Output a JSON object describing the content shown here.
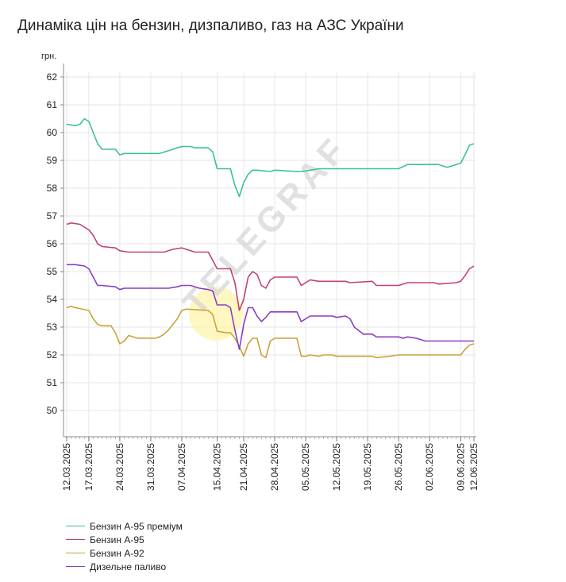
{
  "title": "Динаміка цін на бензин, дизпаливо, газ на АЗС України",
  "watermark": "TELEGRAF",
  "chart_data": {
    "type": "line",
    "title": "Динаміка цін на бензин, дизпаливо, газ на АЗС України",
    "ylabel": "грн.",
    "xlabel": "",
    "ylim": [
      49,
      62
    ],
    "yticks": [
      50,
      51,
      52,
      53,
      54,
      55,
      56,
      57,
      58,
      59,
      60,
      61,
      62
    ],
    "grid": true,
    "legend_position": "bottom-left",
    "x_tick_labels": [
      "12.03.2025",
      "17.03.2025",
      "24.03.2025",
      "31.03.2025",
      "07.04.2025",
      "15.04.2025",
      "21.04.2025",
      "28.04.2025",
      "05.05.2025",
      "12.05.2025",
      "19.05.2025",
      "26.05.2025",
      "02.06.2025",
      "09.06.2025",
      "12.06.2025"
    ],
    "x_tick_dates": [
      "2025-03-12",
      "2025-03-17",
      "2025-03-24",
      "2025-03-31",
      "2025-04-07",
      "2025-04-15",
      "2025-04-21",
      "2025-04-28",
      "2025-05-05",
      "2025-05-12",
      "2025-05-19",
      "2025-05-26",
      "2025-06-02",
      "2025-06-09",
      "2025-06-12"
    ],
    "series": [
      {
        "name": "Бензин А-95 преміум",
        "color": "#3dbf9f",
        "points": [
          [
            "2025-03-12",
            60.3
          ],
          [
            "2025-03-14",
            60.25
          ],
          [
            "2025-03-15",
            60.3
          ],
          [
            "2025-03-16",
            60.5
          ],
          [
            "2025-03-17",
            60.4
          ],
          [
            "2025-03-18",
            60.0
          ],
          [
            "2025-03-19",
            59.6
          ],
          [
            "2025-03-20",
            59.4
          ],
          [
            "2025-03-23",
            59.4
          ],
          [
            "2025-03-24",
            59.2
          ],
          [
            "2025-03-25",
            59.25
          ],
          [
            "2025-04-02",
            59.25
          ],
          [
            "2025-04-04",
            59.35
          ],
          [
            "2025-04-06",
            59.45
          ],
          [
            "2025-04-07",
            59.5
          ],
          [
            "2025-04-09",
            59.5
          ],
          [
            "2025-04-10",
            59.45
          ],
          [
            "2025-04-13",
            59.45
          ],
          [
            "2025-04-14",
            59.3
          ],
          [
            "2025-04-15",
            58.7
          ],
          [
            "2025-04-18",
            58.7
          ],
          [
            "2025-04-19",
            58.1
          ],
          [
            "2025-04-20",
            57.7
          ],
          [
            "2025-04-21",
            58.2
          ],
          [
            "2025-04-22",
            58.5
          ],
          [
            "2025-04-23",
            58.65
          ],
          [
            "2025-04-24",
            58.65
          ],
          [
            "2025-04-27",
            58.6
          ],
          [
            "2025-04-28",
            58.65
          ],
          [
            "2025-05-03",
            58.6
          ],
          [
            "2025-05-04",
            58.6
          ],
          [
            "2025-05-06",
            58.65
          ],
          [
            "2025-05-08",
            58.7
          ],
          [
            "2025-05-26",
            58.7
          ],
          [
            "2025-05-28",
            58.85
          ],
          [
            "2025-06-04",
            58.85
          ],
          [
            "2025-06-06",
            58.75
          ],
          [
            "2025-06-07",
            58.8
          ],
          [
            "2025-06-08",
            58.85
          ],
          [
            "2025-06-09",
            58.9
          ],
          [
            "2025-06-10",
            59.2
          ],
          [
            "2025-06-11",
            59.55
          ],
          [
            "2025-06-12",
            59.6
          ]
        ]
      },
      {
        "name": "Бензин А-95",
        "color": "#c2407a",
        "points": [
          [
            "2025-03-12",
            56.7
          ],
          [
            "2025-03-13",
            56.75
          ],
          [
            "2025-03-15",
            56.7
          ],
          [
            "2025-03-17",
            56.5
          ],
          [
            "2025-03-18",
            56.3
          ],
          [
            "2025-03-19",
            56.0
          ],
          [
            "2025-03-20",
            55.9
          ],
          [
            "2025-03-23",
            55.85
          ],
          [
            "2025-03-24",
            55.75
          ],
          [
            "2025-03-26",
            55.7
          ],
          [
            "2025-04-03",
            55.7
          ],
          [
            "2025-04-05",
            55.8
          ],
          [
            "2025-04-07",
            55.85
          ],
          [
            "2025-04-08",
            55.8
          ],
          [
            "2025-04-10",
            55.7
          ],
          [
            "2025-04-13",
            55.7
          ],
          [
            "2025-04-14",
            55.4
          ],
          [
            "2025-04-15",
            55.1
          ],
          [
            "2025-04-18",
            55.1
          ],
          [
            "2025-04-19",
            54.6
          ],
          [
            "2025-04-20",
            53.6
          ],
          [
            "2025-04-21",
            54.0
          ],
          [
            "2025-04-22",
            54.8
          ],
          [
            "2025-04-23",
            55.0
          ],
          [
            "2025-04-24",
            54.9
          ],
          [
            "2025-04-25",
            54.5
          ],
          [
            "2025-04-26",
            54.4
          ],
          [
            "2025-04-27",
            54.7
          ],
          [
            "2025-04-28",
            54.8
          ],
          [
            "2025-05-03",
            54.8
          ],
          [
            "2025-05-04",
            54.5
          ],
          [
            "2025-05-05",
            54.6
          ],
          [
            "2025-05-06",
            54.7
          ],
          [
            "2025-05-08",
            54.65
          ],
          [
            "2025-05-14",
            54.65
          ],
          [
            "2025-05-15",
            54.6
          ],
          [
            "2025-05-20",
            54.65
          ],
          [
            "2025-05-21",
            54.5
          ],
          [
            "2025-05-26",
            54.5
          ],
          [
            "2025-05-28",
            54.6
          ],
          [
            "2025-06-03",
            54.6
          ],
          [
            "2025-06-04",
            54.55
          ],
          [
            "2025-06-08",
            54.6
          ],
          [
            "2025-06-09",
            54.65
          ],
          [
            "2025-06-10",
            54.85
          ],
          [
            "2025-06-11",
            55.1
          ],
          [
            "2025-06-12",
            55.2
          ]
        ]
      },
      {
        "name": "Бензин А-92",
        "color": "#c9a23a",
        "points": [
          [
            "2025-03-12",
            53.7
          ],
          [
            "2025-03-13",
            53.75
          ],
          [
            "2025-03-14",
            53.7
          ],
          [
            "2025-03-17",
            53.6
          ],
          [
            "2025-03-18",
            53.3
          ],
          [
            "2025-03-19",
            53.1
          ],
          [
            "2025-03-20",
            53.05
          ],
          [
            "2025-03-22",
            53.05
          ],
          [
            "2025-03-23",
            52.8
          ],
          [
            "2025-03-24",
            52.4
          ],
          [
            "2025-03-25",
            52.5
          ],
          [
            "2025-03-26",
            52.7
          ],
          [
            "2025-03-27",
            52.65
          ],
          [
            "2025-03-28",
            52.6
          ],
          [
            "2025-04-01",
            52.6
          ],
          [
            "2025-04-02",
            52.65
          ],
          [
            "2025-04-03",
            52.75
          ],
          [
            "2025-04-04",
            52.9
          ],
          [
            "2025-04-05",
            53.1
          ],
          [
            "2025-04-06",
            53.3
          ],
          [
            "2025-04-07",
            53.6
          ],
          [
            "2025-04-08",
            53.65
          ],
          [
            "2025-04-13",
            53.6
          ],
          [
            "2025-04-14",
            53.45
          ],
          [
            "2025-04-15",
            52.85
          ],
          [
            "2025-04-17",
            52.8
          ],
          [
            "2025-04-18",
            52.8
          ],
          [
            "2025-04-19",
            52.6
          ],
          [
            "2025-04-20",
            52.3
          ],
          [
            "2025-04-21",
            51.95
          ],
          [
            "2025-04-22",
            52.4
          ],
          [
            "2025-04-23",
            52.6
          ],
          [
            "2025-04-24",
            52.6
          ],
          [
            "2025-04-25",
            52.0
          ],
          [
            "2025-04-26",
            51.9
          ],
          [
            "2025-04-27",
            52.5
          ],
          [
            "2025-04-28",
            52.6
          ],
          [
            "2025-05-03",
            52.6
          ],
          [
            "2025-05-04",
            51.95
          ],
          [
            "2025-05-05",
            51.95
          ],
          [
            "2025-05-06",
            52.0
          ],
          [
            "2025-05-08",
            51.95
          ],
          [
            "2025-05-09",
            52.0
          ],
          [
            "2025-05-11",
            52.0
          ],
          [
            "2025-05-12",
            51.95
          ],
          [
            "2025-05-20",
            51.95
          ],
          [
            "2025-05-21",
            51.9
          ],
          [
            "2025-05-24",
            51.95
          ],
          [
            "2025-05-26",
            52.0
          ],
          [
            "2025-06-09",
            52.0
          ],
          [
            "2025-06-10",
            52.2
          ],
          [
            "2025-06-11",
            52.35
          ],
          [
            "2025-06-12",
            52.4
          ]
        ]
      },
      {
        "name": "Дизельне паливо",
        "color": "#8a3fc2",
        "points": [
          [
            "2025-03-12",
            55.25
          ],
          [
            "2025-03-14",
            55.25
          ],
          [
            "2025-03-16",
            55.2
          ],
          [
            "2025-03-17",
            55.1
          ],
          [
            "2025-03-18",
            54.8
          ],
          [
            "2025-03-19",
            54.5
          ],
          [
            "2025-03-20",
            54.5
          ],
          [
            "2025-03-23",
            54.45
          ],
          [
            "2025-03-24",
            54.35
          ],
          [
            "2025-03-25",
            54.4
          ],
          [
            "2025-04-04",
            54.4
          ],
          [
            "2025-04-06",
            54.45
          ],
          [
            "2025-04-07",
            54.5
          ],
          [
            "2025-04-09",
            54.5
          ],
          [
            "2025-04-11",
            54.4
          ],
          [
            "2025-04-13",
            54.35
          ],
          [
            "2025-04-14",
            54.3
          ],
          [
            "2025-04-15",
            53.8
          ],
          [
            "2025-04-17",
            53.8
          ],
          [
            "2025-04-18",
            53.7
          ],
          [
            "2025-04-19",
            52.9
          ],
          [
            "2025-04-20",
            52.2
          ],
          [
            "2025-04-21",
            53.1
          ],
          [
            "2025-04-22",
            53.7
          ],
          [
            "2025-04-23",
            53.7
          ],
          [
            "2025-04-24",
            53.4
          ],
          [
            "2025-04-25",
            53.2
          ],
          [
            "2025-04-26",
            53.35
          ],
          [
            "2025-04-27",
            53.55
          ],
          [
            "2025-05-02",
            53.55
          ],
          [
            "2025-05-03",
            53.55
          ],
          [
            "2025-05-04",
            53.2
          ],
          [
            "2025-05-05",
            53.3
          ],
          [
            "2025-05-06",
            53.4
          ],
          [
            "2025-05-11",
            53.4
          ],
          [
            "2025-05-12",
            53.35
          ],
          [
            "2025-05-14",
            53.4
          ],
          [
            "2025-05-15",
            53.3
          ],
          [
            "2025-05-16",
            53.0
          ],
          [
            "2025-05-18",
            52.75
          ],
          [
            "2025-05-20",
            52.75
          ],
          [
            "2025-05-21",
            52.65
          ],
          [
            "2025-05-26",
            52.65
          ],
          [
            "2025-05-27",
            52.6
          ],
          [
            "2025-05-28",
            52.65
          ],
          [
            "2025-05-30",
            52.6
          ],
          [
            "2025-05-31",
            52.55
          ],
          [
            "2025-06-01",
            52.5
          ],
          [
            "2025-06-08",
            52.5
          ],
          [
            "2025-06-09",
            52.5
          ],
          [
            "2025-06-12",
            52.5
          ]
        ]
      }
    ]
  }
}
